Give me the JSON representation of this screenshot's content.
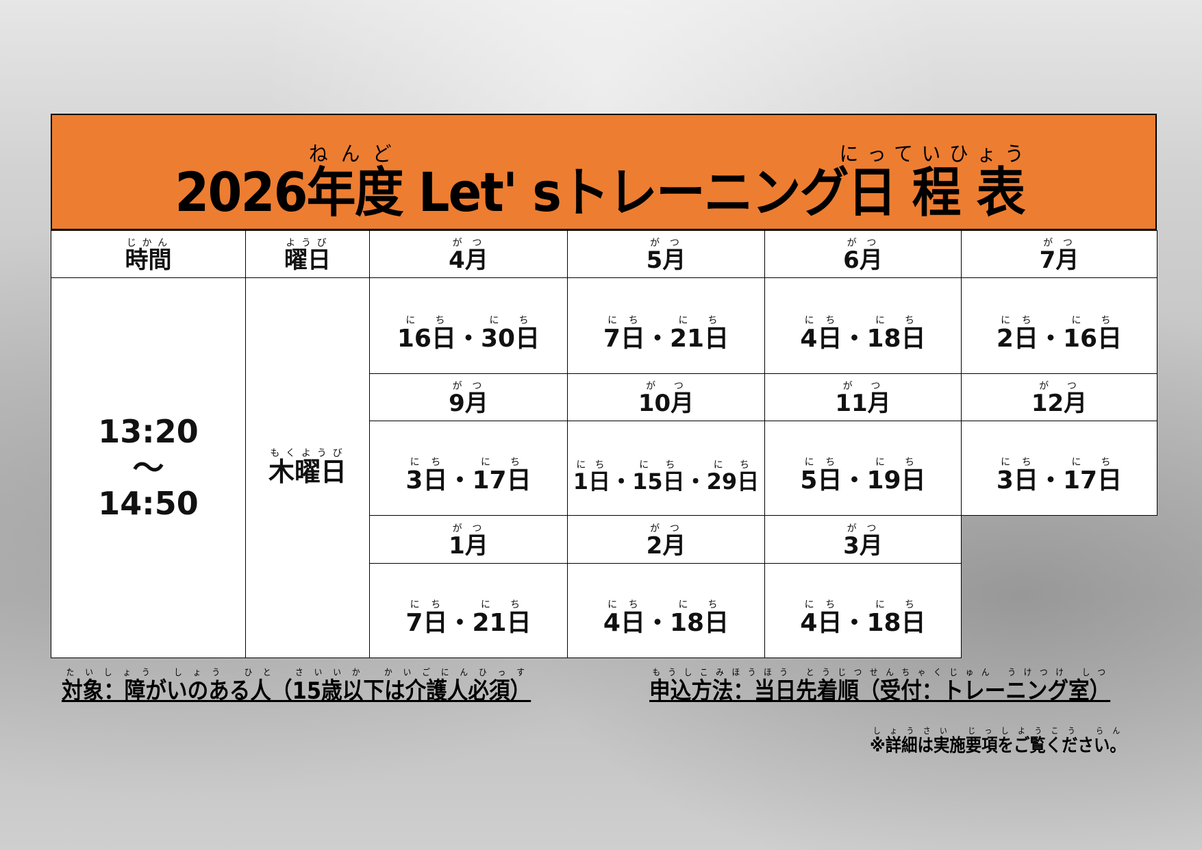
{
  "title": {
    "year": "2026",
    "nendo": "年度",
    "nendo_ruby": "ねんど",
    "lets": "Let' s",
    "training": "トレーニング",
    "nitteihyo": "日程表",
    "nitteihyo_ruby": "にっていひょう"
  },
  "colors": {
    "header": "#ed7d31"
  },
  "headers": {
    "time": "時間",
    "time_ruby": "じかん",
    "weekday": "曜日",
    "weekday_ruby": "ようび"
  },
  "time": {
    "start": "13:20",
    "sep": "〜",
    "end": "14:50"
  },
  "weekday": {
    "label": "木曜日",
    "ruby": "もくようび"
  },
  "month_ruby": "がつ",
  "day_ruby": "にち",
  "months": [
    {
      "month": "4月",
      "days": [
        "16日",
        "30日"
      ]
    },
    {
      "month": "5月",
      "days": [
        "7日",
        "21日"
      ]
    },
    {
      "month": "6月",
      "days": [
        "4日",
        "18日"
      ]
    },
    {
      "month": "7月",
      "days": [
        "2日",
        "16日"
      ]
    },
    {
      "month": "9月",
      "days": [
        "3日",
        "17日"
      ]
    },
    {
      "month": "10月",
      "days": [
        "1日",
        "15日",
        "29日"
      ]
    },
    {
      "month": "11月",
      "days": [
        "5日",
        "19日"
      ]
    },
    {
      "month": "12月",
      "days": [
        "3日",
        "17日"
      ]
    },
    {
      "month": "1月",
      "days": [
        "7日",
        "21日"
      ]
    },
    {
      "month": "2月",
      "days": [
        "4日",
        "18日"
      ]
    },
    {
      "month": "3月",
      "days": [
        "4日",
        "18日"
      ]
    }
  ],
  "notes": {
    "target": "対象：障がいのある人（15歳以下は介護人必須）",
    "target_ruby": "たいしょう しょう ひと さいいか かいごにんひっす",
    "apply": "申込方法：当日先着順（受付：トレーニング室）",
    "apply_ruby": "もうしこみほうほう とうじつせんちゃくじゅん うけつけ しつ",
    "detail": "※詳細は実施要項をご覧ください。",
    "detail_ruby": "しょうさい じっしようこう らん"
  }
}
